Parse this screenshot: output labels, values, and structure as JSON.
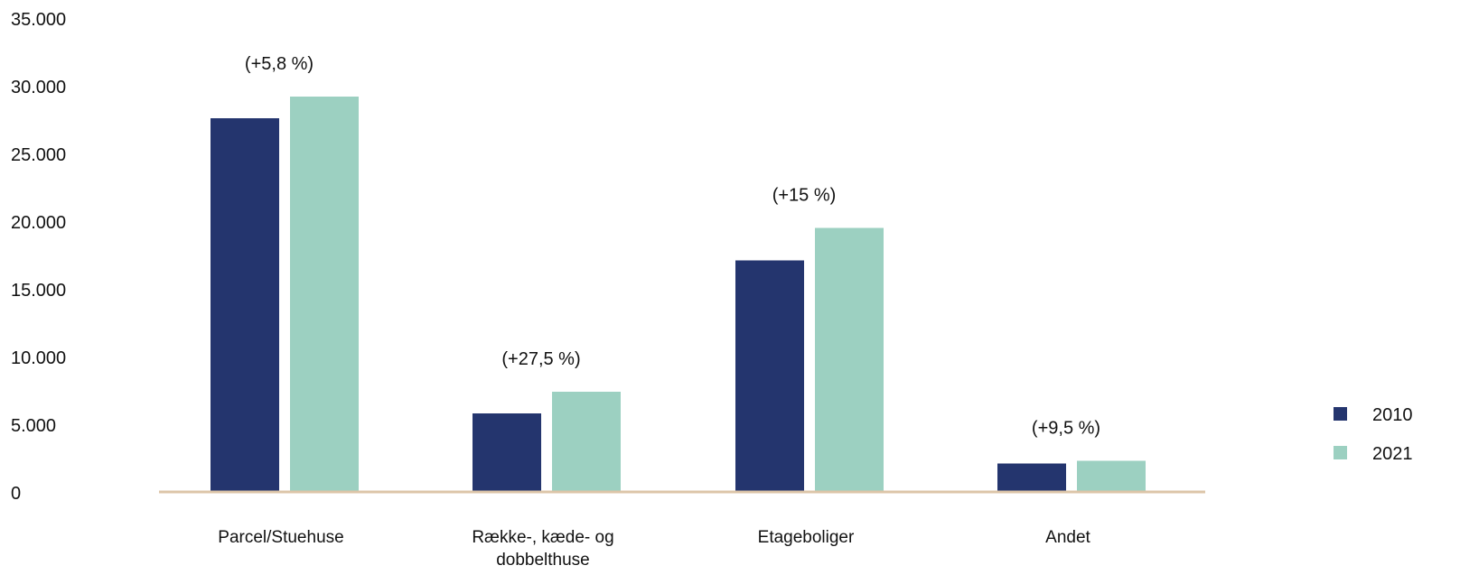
{
  "chart_data": {
    "type": "bar",
    "categories": [
      [
        "Parcel/Stuehuse"
      ],
      [
        "Række-, kæde- og",
        "dobbelthuse"
      ],
      [
        "Etageboliger"
      ],
      [
        "Andet"
      ]
    ],
    "series": [
      {
        "name": "2010",
        "values": [
          27600,
          5800,
          17100,
          2100
        ],
        "color": "#24356e"
      },
      {
        "name": "2021",
        "values": [
          29200,
          7400,
          19500,
          2300
        ],
        "color": "#9cd0c1"
      }
    ],
    "annotations": [
      "(+5,8 %)",
      "(+27,5 %)",
      "(+15 %)",
      "(+9,5 %)"
    ],
    "ylim": [
      0,
      35000
    ],
    "yticks": [
      0,
      5000,
      10000,
      15000,
      20000,
      25000,
      30000,
      35000
    ],
    "ytick_labels": [
      "0",
      "5.000",
      "10.000",
      "15.000",
      "20.000",
      "25.000",
      "30.000",
      "35.000"
    ],
    "title": "",
    "xlabel": "",
    "ylabel": "",
    "grid": false,
    "legend_position": "right",
    "axis_color": "#dcc5a8"
  }
}
